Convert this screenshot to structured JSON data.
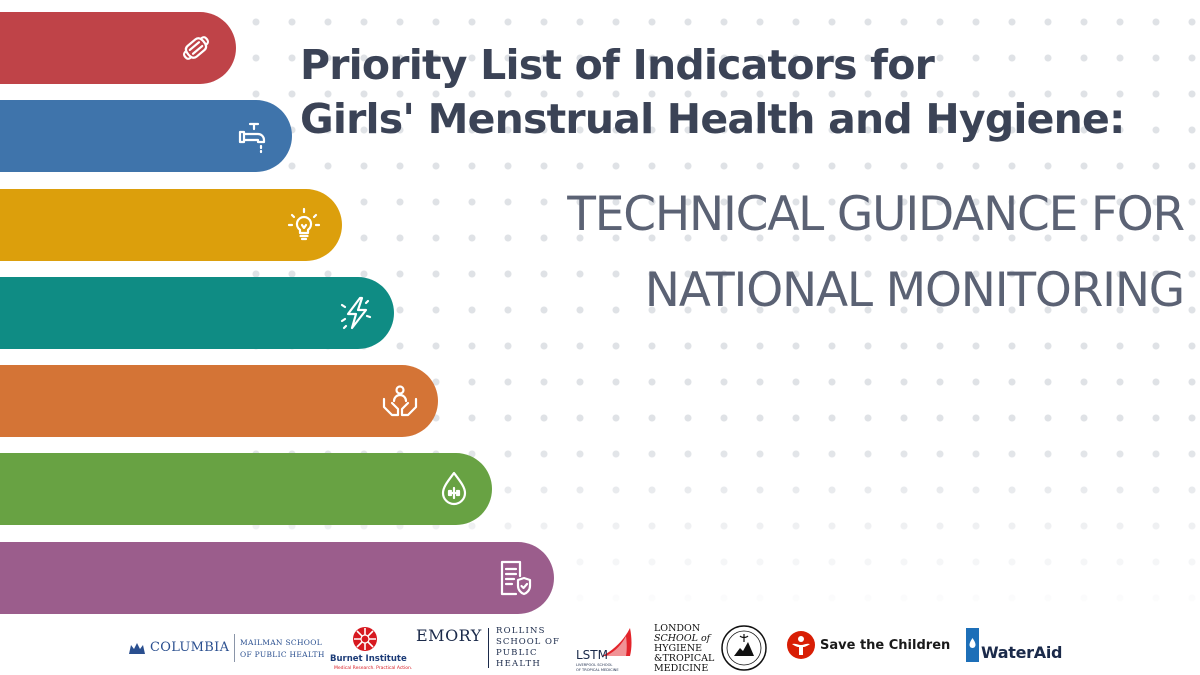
{
  "title": {
    "line1": "Priority List of Indicators for",
    "line2": "Girls' Menstrual Health and Hygiene:"
  },
  "subtitle": {
    "line1": "TECHNICAL GUIDANCE FOR",
    "line2": "NATIONAL MONITORING"
  },
  "bars": [
    {
      "color": "#bf4348",
      "icon": "menstrual-pad-icon"
    },
    {
      "color": "#3f74ab",
      "icon": "water-tap-icon"
    },
    {
      "color": "#dc9f0c",
      "icon": "lightbulb-icon"
    },
    {
      "color": "#0f8c84",
      "icon": "lightning-icon"
    },
    {
      "color": "#d47436",
      "icon": "hands-care-icon"
    },
    {
      "color": "#68a243",
      "icon": "water-drop-plus-icon"
    },
    {
      "color": "#9b5d8c",
      "icon": "document-shield-icon"
    }
  ],
  "logos": {
    "columbia": {
      "name": "COLUMBIA",
      "sub1": "MAILMAN SCHOOL",
      "sub2": "OF PUBLIC HEALTH"
    },
    "burnet": {
      "name": "Burnet Institute",
      "tag": "Medical Research. Practical Action."
    },
    "emory": {
      "name": "EMORY",
      "sub1": "ROLLINS",
      "sub2": "SCHOOL OF",
      "sub3": "PUBLIC",
      "sub4": "HEALTH"
    },
    "lstm": {
      "name": "LSTM",
      "sub1": "LIVERPOOL SCHOOL",
      "sub2": "OF TROPICAL MEDICINE"
    },
    "lshtm": {
      "line1": "LONDON",
      "line2": "SCHOOL of",
      "line3": "HYGIENE",
      "line4": "&TROPICAL",
      "line5": "MEDICINE"
    },
    "save": {
      "name": "Save the Children",
      "color": "#d81e05"
    },
    "wateraid": {
      "name": "WaterAid",
      "color": "#1d6fb8"
    }
  }
}
